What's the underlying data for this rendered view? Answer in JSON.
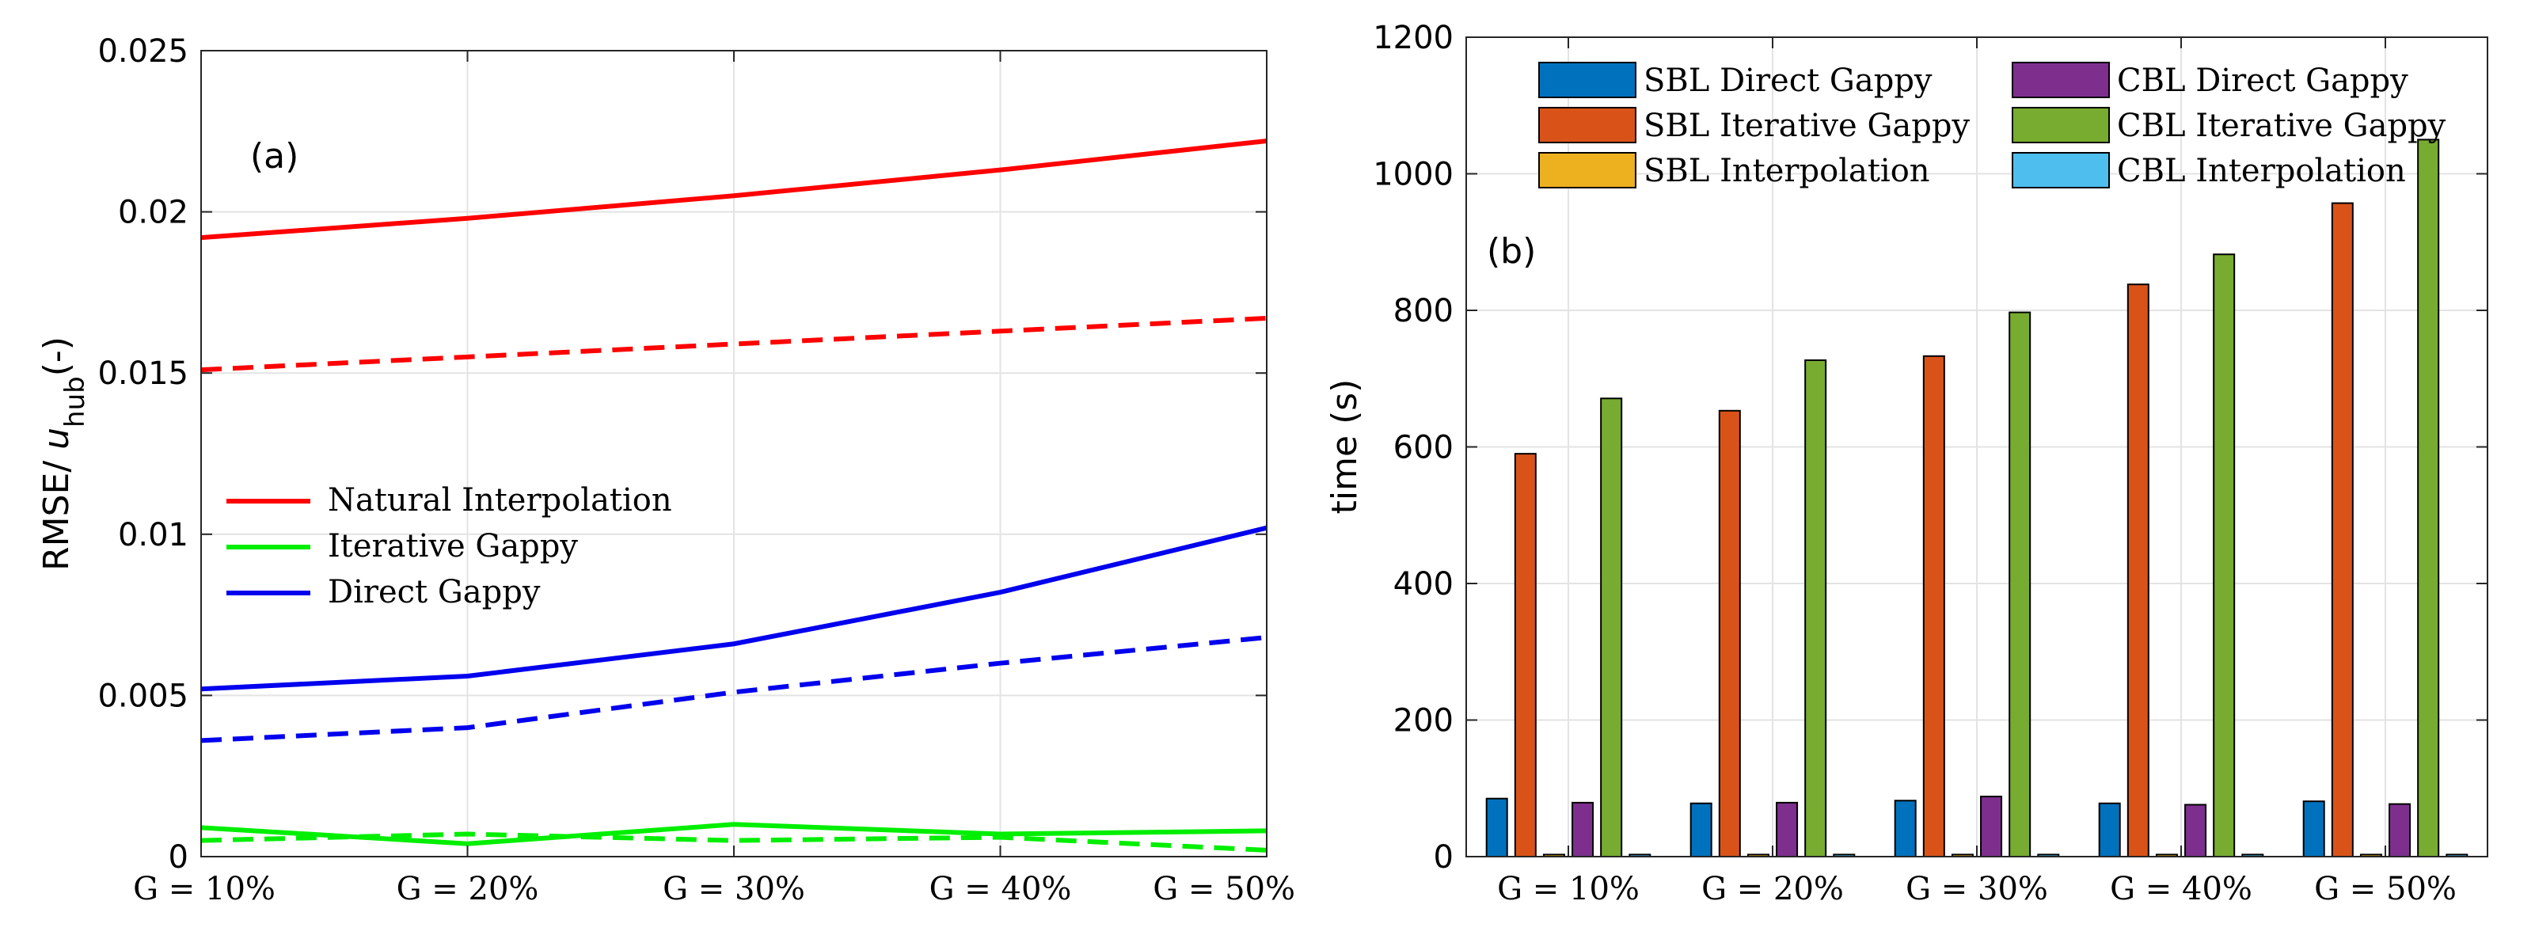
{
  "chart_data": [
    {
      "type": "line",
      "panel_label": "(a)",
      "categories": [
        "G = 10%",
        "G = 20%",
        "G = 30%",
        "G = 40%",
        "G = 50%"
      ],
      "ylabel_main": "RMSE/ ",
      "ylabel_var": "u",
      "ylabel_sub": "hub",
      "ylabel_tail": "(-)",
      "ylim": [
        0,
        0.025
      ],
      "yticks": [
        0,
        0.005,
        0.01,
        0.015,
        0.02,
        0.025
      ],
      "ytick_labels": [
        "0",
        "0.005",
        "0.01",
        "0.015",
        "0.02",
        "0.025"
      ],
      "grid": true,
      "legend_position": "center-left",
      "series": [
        {
          "name": "Natural Interpolation",
          "color": "#ff0000",
          "dash": "solid",
          "values": [
            0.0192,
            0.0198,
            0.0205,
            0.0213,
            0.0222
          ]
        },
        {
          "name": "Natural Interpolation (dashed)",
          "color": "#ff0000",
          "dash": "dashed",
          "values": [
            0.0151,
            0.0155,
            0.0159,
            0.0163,
            0.0167
          ]
        },
        {
          "name": "Iterative Gappy",
          "color": "#00ee00",
          "dash": "solid",
          "values": [
            0.0009,
            0.0004,
            0.001,
            0.0007,
            0.0008
          ]
        },
        {
          "name": "Iterative Gappy (dashed)",
          "color": "#00ee00",
          "dash": "dashed",
          "values": [
            0.0005,
            0.0007,
            0.0005,
            0.0006,
            0.0002
          ]
        },
        {
          "name": "Direct Gappy",
          "color": "#0000ee",
          "dash": "solid",
          "values": [
            0.0052,
            0.0056,
            0.0066,
            0.0082,
            0.0102
          ]
        },
        {
          "name": "Direct Gappy (dashed)",
          "color": "#0000ee",
          "dash": "dashed",
          "values": [
            0.0036,
            0.004,
            0.0051,
            0.006,
            0.0068
          ]
        }
      ],
      "legend": [
        "Natural Interpolation",
        "Iterative Gappy",
        "Direct Gappy"
      ]
    },
    {
      "type": "bar",
      "panel_label": "(b)",
      "categories": [
        "G = 10%",
        "G = 20%",
        "G = 30%",
        "G = 40%",
        "G = 50%"
      ],
      "ylabel": "time (s)",
      "ylim": [
        0,
        1200
      ],
      "yticks": [
        0,
        200,
        400,
        600,
        800,
        1000,
        1200
      ],
      "ytick_labels": [
        "0",
        "200",
        "400",
        "600",
        "800",
        "1000",
        "1200"
      ],
      "grid": true,
      "legend_position": "top",
      "series": [
        {
          "name": "SBL Direct Gappy",
          "color": "#0072bd",
          "values": [
            85,
            78,
            82,
            78,
            81
          ]
        },
        {
          "name": "SBL Iterative Gappy",
          "color": "#d95319",
          "values": [
            590,
            653,
            733,
            838,
            957
          ]
        },
        {
          "name": "SBL Interpolation",
          "color": "#edb120",
          "values": [
            3,
            3,
            3,
            3,
            3
          ]
        },
        {
          "name": "CBL Direct Gappy",
          "color": "#7e2f8e",
          "values": [
            79,
            79,
            88,
            76,
            77
          ]
        },
        {
          "name": "CBL Iterative Gappy",
          "color": "#77ac30",
          "values": [
            671,
            727,
            797,
            882,
            1050
          ]
        },
        {
          "name": "CBL Interpolation",
          "color": "#4dbeee",
          "values": [
            3,
            3,
            3,
            3,
            3
          ]
        }
      ]
    }
  ]
}
